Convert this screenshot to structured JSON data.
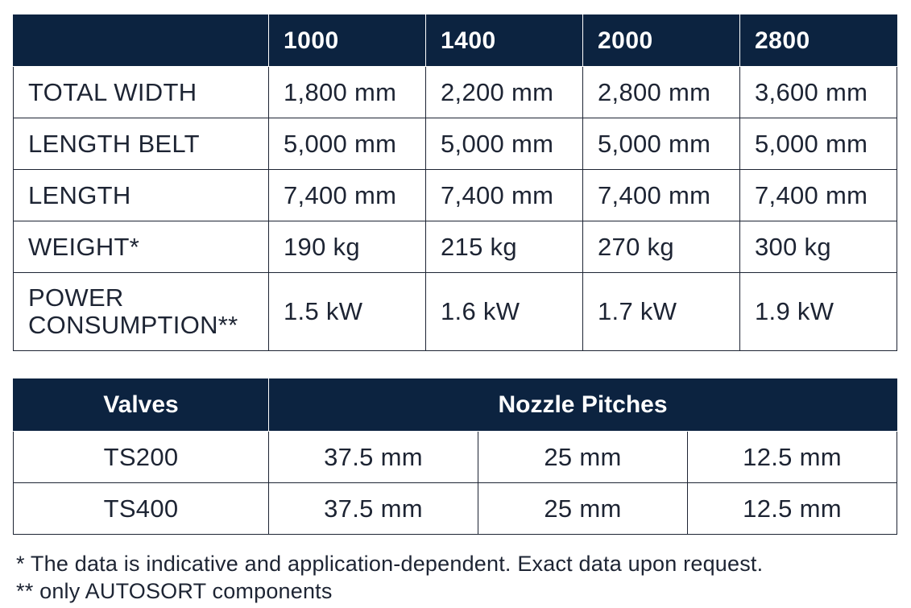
{
  "spec_table": {
    "headers": [
      "",
      "1000",
      "1400",
      "2000",
      "2800"
    ],
    "rows": [
      {
        "label": "TOTAL WIDTH",
        "values": [
          "1,800 mm",
          "2,200 mm",
          "2,800 mm",
          "3,600 mm"
        ]
      },
      {
        "label": "LENGTH BELT",
        "values": [
          "5,000 mm",
          "5,000 mm",
          "5,000 mm",
          "5,000 mm"
        ]
      },
      {
        "label": "LENGTH",
        "values": [
          "7,400 mm",
          "7,400 mm",
          "7,400 mm",
          "7,400 mm"
        ]
      },
      {
        "label": "WEIGHT*",
        "values": [
          "190 kg",
          "215 kg",
          "270 kg",
          "300 kg"
        ]
      },
      {
        "label_line1": "POWER",
        "label_line2": "CONSUMPTION**",
        "values": [
          "1.5 kW",
          "1.6 kW",
          "1.7 kW",
          "1.9 kW"
        ]
      }
    ]
  },
  "valves_table": {
    "headers": [
      "Valves",
      "Nozzle Pitches"
    ],
    "rows": [
      {
        "valve": "TS200",
        "pitches": [
          "37.5 mm",
          "25 mm",
          "12.5 mm"
        ]
      },
      {
        "valve": "TS400",
        "pitches": [
          "37.5 mm",
          "25 mm",
          "12.5 mm"
        ]
      }
    ]
  },
  "footnotes": [
    "* The data is indicative and application-dependent. Exact data upon request.",
    "** only AUTOSORT components"
  ]
}
